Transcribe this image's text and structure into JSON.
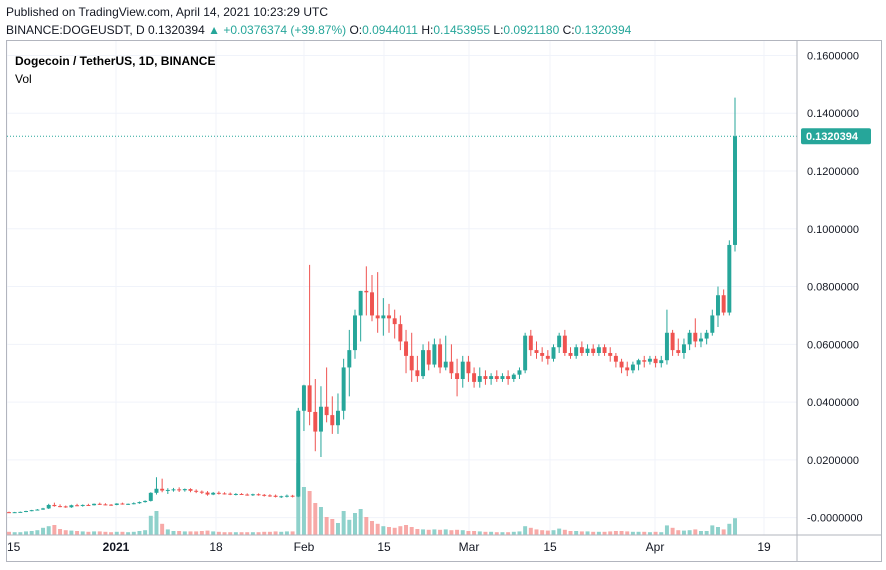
{
  "header": {
    "published": "Published on TradingView.com, April 14, 2021 10:23:29 UTC",
    "symbol": "BINANCE:DOGEUSDT, D",
    "last": "0.1320394",
    "change_arrow": "▲",
    "change": "+0.0376374 (+39.87%)",
    "o_label": "O:",
    "o_value": "0.0944011",
    "h_label": "H:",
    "h_value": "0.1453955",
    "l_label": "L:",
    "l_value": "0.0921180",
    "c_label": "C:",
    "c_value": "0.1320394"
  },
  "legend": {
    "title": "Dogecoin / TetherUS, 1D, BINANCE",
    "volume": "Vol"
  },
  "colors": {
    "up": "#26a69a",
    "down": "#ef5350",
    "up_vol": "#8ed1cb",
    "down_vol": "#f7a9a7",
    "grid": "#f0f3fa",
    "price_line": "#26a69a"
  },
  "chart_data": {
    "type": "candlestick",
    "x_ticks": [
      "15",
      "2021",
      "18",
      "Feb",
      "15",
      "Mar",
      "15",
      "Apr",
      "19"
    ],
    "y_ticks": [
      "0.1600000",
      "0.1400000",
      "0.1200000",
      "0.1000000",
      "0.0800000",
      "0.0600000",
      "0.0400000",
      "0.0200000",
      "-0.0000000"
    ],
    "ylim": [
      -0.006,
      0.165
    ],
    "last_price_label": "0.1320394",
    "last_price": 0.1320394,
    "candles": [
      {
        "o": 0.0019,
        "h": 0.0021,
        "l": 0.0017,
        "c": 0.0018,
        "v": 8
      },
      {
        "o": 0.0018,
        "h": 0.002,
        "l": 0.0017,
        "c": 0.0019,
        "v": 7
      },
      {
        "o": 0.0019,
        "h": 0.0021,
        "l": 0.0018,
        "c": 0.002,
        "v": 7
      },
      {
        "o": 0.002,
        "h": 0.0024,
        "l": 0.0019,
        "c": 0.0023,
        "v": 9
      },
      {
        "o": 0.0023,
        "h": 0.0027,
        "l": 0.0022,
        "c": 0.0026,
        "v": 10
      },
      {
        "o": 0.0026,
        "h": 0.003,
        "l": 0.0025,
        "c": 0.0028,
        "v": 12
      },
      {
        "o": 0.0028,
        "h": 0.0034,
        "l": 0.0027,
        "c": 0.0032,
        "v": 18
      },
      {
        "o": 0.0032,
        "h": 0.0048,
        "l": 0.003,
        "c": 0.0044,
        "v": 22
      },
      {
        "o": 0.0044,
        "h": 0.0052,
        "l": 0.0038,
        "c": 0.004,
        "v": 25
      },
      {
        "o": 0.004,
        "h": 0.0046,
        "l": 0.0036,
        "c": 0.0039,
        "v": 15
      },
      {
        "o": 0.0039,
        "h": 0.0042,
        "l": 0.0034,
        "c": 0.0036,
        "v": 12
      },
      {
        "o": 0.0036,
        "h": 0.0045,
        "l": 0.0034,
        "c": 0.0043,
        "v": 11
      },
      {
        "o": 0.0043,
        "h": 0.0048,
        "l": 0.004,
        "c": 0.0041,
        "v": 10
      },
      {
        "o": 0.0041,
        "h": 0.0046,
        "l": 0.0038,
        "c": 0.0044,
        "v": 9
      },
      {
        "o": 0.0044,
        "h": 0.0048,
        "l": 0.0041,
        "c": 0.0043,
        "v": 8
      },
      {
        "o": 0.0043,
        "h": 0.0049,
        "l": 0.0042,
        "c": 0.0048,
        "v": 9
      },
      {
        "o": 0.0048,
        "h": 0.0052,
        "l": 0.0044,
        "c": 0.0046,
        "v": 9
      },
      {
        "o": 0.0046,
        "h": 0.005,
        "l": 0.0043,
        "c": 0.0045,
        "v": 8
      },
      {
        "o": 0.0045,
        "h": 0.0047,
        "l": 0.0041,
        "c": 0.0044,
        "v": 7
      },
      {
        "o": 0.0044,
        "h": 0.005,
        "l": 0.0043,
        "c": 0.0049,
        "v": 8
      },
      {
        "o": 0.0049,
        "h": 0.0052,
        "l": 0.0045,
        "c": 0.0047,
        "v": 8
      },
      {
        "o": 0.0047,
        "h": 0.0049,
        "l": 0.0044,
        "c": 0.0048,
        "v": 7
      },
      {
        "o": 0.0048,
        "h": 0.0053,
        "l": 0.0046,
        "c": 0.005,
        "v": 8
      },
      {
        "o": 0.005,
        "h": 0.0056,
        "l": 0.0048,
        "c": 0.0054,
        "v": 10
      },
      {
        "o": 0.0054,
        "h": 0.006,
        "l": 0.0052,
        "c": 0.0058,
        "v": 12
      },
      {
        "o": 0.0058,
        "h": 0.0088,
        "l": 0.0056,
        "c": 0.0086,
        "v": 48
      },
      {
        "o": 0.0086,
        "h": 0.014,
        "l": 0.008,
        "c": 0.01,
        "v": 60
      },
      {
        "o": 0.01,
        "h": 0.0135,
        "l": 0.0088,
        "c": 0.0094,
        "v": 28
      },
      {
        "o": 0.0094,
        "h": 0.0102,
        "l": 0.0082,
        "c": 0.0096,
        "v": 14
      },
      {
        "o": 0.0096,
        "h": 0.0103,
        "l": 0.009,
        "c": 0.0098,
        "v": 10
      },
      {
        "o": 0.0098,
        "h": 0.0105,
        "l": 0.0089,
        "c": 0.0095,
        "v": 10
      },
      {
        "o": 0.0095,
        "h": 0.0101,
        "l": 0.009,
        "c": 0.0099,
        "v": 9
      },
      {
        "o": 0.0099,
        "h": 0.0102,
        "l": 0.0088,
        "c": 0.0093,
        "v": 9
      },
      {
        "o": 0.0093,
        "h": 0.0098,
        "l": 0.0085,
        "c": 0.009,
        "v": 9
      },
      {
        "o": 0.009,
        "h": 0.0094,
        "l": 0.0082,
        "c": 0.0087,
        "v": 10
      },
      {
        "o": 0.0087,
        "h": 0.0092,
        "l": 0.0076,
        "c": 0.008,
        "v": 11
      },
      {
        "o": 0.008,
        "h": 0.0089,
        "l": 0.0078,
        "c": 0.0086,
        "v": 9
      },
      {
        "o": 0.0086,
        "h": 0.0091,
        "l": 0.008,
        "c": 0.0084,
        "v": 8
      },
      {
        "o": 0.0084,
        "h": 0.0088,
        "l": 0.008,
        "c": 0.0083,
        "v": 7
      },
      {
        "o": 0.0083,
        "h": 0.0087,
        "l": 0.0078,
        "c": 0.0081,
        "v": 7
      },
      {
        "o": 0.0081,
        "h": 0.0085,
        "l": 0.0077,
        "c": 0.0082,
        "v": 7
      },
      {
        "o": 0.0082,
        "h": 0.0085,
        "l": 0.0079,
        "c": 0.008,
        "v": 7
      },
      {
        "o": 0.008,
        "h": 0.0084,
        "l": 0.0076,
        "c": 0.0078,
        "v": 7
      },
      {
        "o": 0.0078,
        "h": 0.0083,
        "l": 0.0075,
        "c": 0.0081,
        "v": 7
      },
      {
        "o": 0.0081,
        "h": 0.0084,
        "l": 0.0076,
        "c": 0.0079,
        "v": 7
      },
      {
        "o": 0.0079,
        "h": 0.0082,
        "l": 0.0073,
        "c": 0.0077,
        "v": 8
      },
      {
        "o": 0.0077,
        "h": 0.0081,
        "l": 0.0072,
        "c": 0.0076,
        "v": 8
      },
      {
        "o": 0.0076,
        "h": 0.008,
        "l": 0.007,
        "c": 0.0072,
        "v": 9
      },
      {
        "o": 0.0072,
        "h": 0.0076,
        "l": 0.0068,
        "c": 0.0074,
        "v": 8
      },
      {
        "o": 0.0074,
        "h": 0.008,
        "l": 0.007,
        "c": 0.0076,
        "v": 9
      },
      {
        "o": 0.0076,
        "h": 0.0079,
        "l": 0.007,
        "c": 0.0073,
        "v": 9
      },
      {
        "o": 0.0073,
        "h": 0.038,
        "l": 0.0071,
        "c": 0.037,
        "v": 180
      },
      {
        "o": 0.037,
        "h": 0.046,
        "l": 0.03,
        "c": 0.0458,
        "v": 120
      },
      {
        "o": 0.0458,
        "h": 0.0875,
        "l": 0.032,
        "c": 0.0366,
        "v": 110
      },
      {
        "o": 0.0366,
        "h": 0.048,
        "l": 0.023,
        "c": 0.0298,
        "v": 80
      },
      {
        "o": 0.0298,
        "h": 0.0455,
        "l": 0.021,
        "c": 0.0384,
        "v": 70
      },
      {
        "o": 0.0384,
        "h": 0.052,
        "l": 0.033,
        "c": 0.0355,
        "v": 45
      },
      {
        "o": 0.0355,
        "h": 0.042,
        "l": 0.029,
        "c": 0.032,
        "v": 40
      },
      {
        "o": 0.032,
        "h": 0.043,
        "l": 0.029,
        "c": 0.037,
        "v": 30
      },
      {
        "o": 0.037,
        "h": 0.055,
        "l": 0.034,
        "c": 0.052,
        "v": 60
      },
      {
        "o": 0.052,
        "h": 0.065,
        "l": 0.042,
        "c": 0.058,
        "v": 38
      },
      {
        "o": 0.058,
        "h": 0.072,
        "l": 0.055,
        "c": 0.07,
        "v": 55
      },
      {
        "o": 0.07,
        "h": 0.0785,
        "l": 0.061,
        "c": 0.0785,
        "v": 65
      },
      {
        "o": 0.0785,
        "h": 0.087,
        "l": 0.07,
        "c": 0.078,
        "v": 45
      },
      {
        "o": 0.078,
        "h": 0.084,
        "l": 0.068,
        "c": 0.07,
        "v": 35
      },
      {
        "o": 0.07,
        "h": 0.085,
        "l": 0.064,
        "c": 0.069,
        "v": 28
      },
      {
        "o": 0.069,
        "h": 0.076,
        "l": 0.063,
        "c": 0.07,
        "v": 22
      },
      {
        "o": 0.07,
        "h": 0.074,
        "l": 0.064,
        "c": 0.069,
        "v": 20
      },
      {
        "o": 0.069,
        "h": 0.072,
        "l": 0.062,
        "c": 0.067,
        "v": 18
      },
      {
        "o": 0.067,
        "h": 0.07,
        "l": 0.058,
        "c": 0.061,
        "v": 22
      },
      {
        "o": 0.061,
        "h": 0.065,
        "l": 0.05,
        "c": 0.056,
        "v": 25
      },
      {
        "o": 0.056,
        "h": 0.064,
        "l": 0.047,
        "c": 0.051,
        "v": 20
      },
      {
        "o": 0.051,
        "h": 0.056,
        "l": 0.047,
        "c": 0.049,
        "v": 15
      },
      {
        "o": 0.049,
        "h": 0.06,
        "l": 0.048,
        "c": 0.058,
        "v": 14
      },
      {
        "o": 0.058,
        "h": 0.061,
        "l": 0.051,
        "c": 0.053,
        "v": 13
      },
      {
        "o": 0.053,
        "h": 0.062,
        "l": 0.052,
        "c": 0.06,
        "v": 14
      },
      {
        "o": 0.06,
        "h": 0.062,
        "l": 0.05,
        "c": 0.052,
        "v": 13
      },
      {
        "o": 0.052,
        "h": 0.063,
        "l": 0.051,
        "c": 0.054,
        "v": 14
      },
      {
        "o": 0.054,
        "h": 0.06,
        "l": 0.048,
        "c": 0.05,
        "v": 12
      },
      {
        "o": 0.05,
        "h": 0.055,
        "l": 0.042,
        "c": 0.048,
        "v": 13
      },
      {
        "o": 0.048,
        "h": 0.056,
        "l": 0.045,
        "c": 0.054,
        "v": 12
      },
      {
        "o": 0.054,
        "h": 0.056,
        "l": 0.047,
        "c": 0.05,
        "v": 10
      },
      {
        "o": 0.05,
        "h": 0.052,
        "l": 0.045,
        "c": 0.047,
        "v": 10
      },
      {
        "o": 0.047,
        "h": 0.052,
        "l": 0.045,
        "c": 0.049,
        "v": 9
      },
      {
        "o": 0.049,
        "h": 0.051,
        "l": 0.046,
        "c": 0.048,
        "v": 8
      },
      {
        "o": 0.048,
        "h": 0.05,
        "l": 0.046,
        "c": 0.049,
        "v": 8
      },
      {
        "o": 0.049,
        "h": 0.051,
        "l": 0.047,
        "c": 0.048,
        "v": 7
      },
      {
        "o": 0.048,
        "h": 0.05,
        "l": 0.047,
        "c": 0.049,
        "v": 7
      },
      {
        "o": 0.049,
        "h": 0.051,
        "l": 0.046,
        "c": 0.048,
        "v": 7
      },
      {
        "o": 0.048,
        "h": 0.05,
        "l": 0.047,
        "c": 0.0495,
        "v": 8
      },
      {
        "o": 0.0495,
        "h": 0.052,
        "l": 0.048,
        "c": 0.051,
        "v": 9
      },
      {
        "o": 0.051,
        "h": 0.064,
        "l": 0.05,
        "c": 0.063,
        "v": 22
      },
      {
        "o": 0.063,
        "h": 0.065,
        "l": 0.056,
        "c": 0.058,
        "v": 18
      },
      {
        "o": 0.058,
        "h": 0.061,
        "l": 0.055,
        "c": 0.057,
        "v": 14
      },
      {
        "o": 0.057,
        "h": 0.059,
        "l": 0.054,
        "c": 0.056,
        "v": 12
      },
      {
        "o": 0.056,
        "h": 0.058,
        "l": 0.053,
        "c": 0.055,
        "v": 11
      },
      {
        "o": 0.055,
        "h": 0.06,
        "l": 0.054,
        "c": 0.059,
        "v": 12
      },
      {
        "o": 0.059,
        "h": 0.064,
        "l": 0.057,
        "c": 0.063,
        "v": 16
      },
      {
        "o": 0.063,
        "h": 0.065,
        "l": 0.056,
        "c": 0.057,
        "v": 13
      },
      {
        "o": 0.057,
        "h": 0.059,
        "l": 0.055,
        "c": 0.056,
        "v": 10
      },
      {
        "o": 0.056,
        "h": 0.06,
        "l": 0.055,
        "c": 0.059,
        "v": 10
      },
      {
        "o": 0.059,
        "h": 0.061,
        "l": 0.056,
        "c": 0.057,
        "v": 9
      },
      {
        "o": 0.057,
        "h": 0.06,
        "l": 0.056,
        "c": 0.0585,
        "v": 9
      },
      {
        "o": 0.0585,
        "h": 0.06,
        "l": 0.056,
        "c": 0.057,
        "v": 8
      },
      {
        "o": 0.057,
        "h": 0.06,
        "l": 0.056,
        "c": 0.059,
        "v": 8
      },
      {
        "o": 0.059,
        "h": 0.06,
        "l": 0.056,
        "c": 0.057,
        "v": 8
      },
      {
        "o": 0.057,
        "h": 0.059,
        "l": 0.054,
        "c": 0.056,
        "v": 9
      },
      {
        "o": 0.056,
        "h": 0.057,
        "l": 0.052,
        "c": 0.054,
        "v": 10
      },
      {
        "o": 0.054,
        "h": 0.055,
        "l": 0.05,
        "c": 0.052,
        "v": 10
      },
      {
        "o": 0.052,
        "h": 0.054,
        "l": 0.049,
        "c": 0.051,
        "v": 9
      },
      {
        "o": 0.051,
        "h": 0.054,
        "l": 0.05,
        "c": 0.053,
        "v": 8
      },
      {
        "o": 0.053,
        "h": 0.055,
        "l": 0.051,
        "c": 0.0545,
        "v": 8
      },
      {
        "o": 0.0545,
        "h": 0.056,
        "l": 0.052,
        "c": 0.054,
        "v": 8
      },
      {
        "o": 0.054,
        "h": 0.056,
        "l": 0.053,
        "c": 0.055,
        "v": 7
      },
      {
        "o": 0.055,
        "h": 0.056,
        "l": 0.052,
        "c": 0.0535,
        "v": 8
      },
      {
        "o": 0.0535,
        "h": 0.056,
        "l": 0.052,
        "c": 0.0545,
        "v": 7
      },
      {
        "o": 0.0545,
        "h": 0.072,
        "l": 0.053,
        "c": 0.064,
        "v": 24
      },
      {
        "o": 0.064,
        "h": 0.065,
        "l": 0.056,
        "c": 0.058,
        "v": 18
      },
      {
        "o": 0.058,
        "h": 0.062,
        "l": 0.056,
        "c": 0.057,
        "v": 12
      },
      {
        "o": 0.057,
        "h": 0.062,
        "l": 0.055,
        "c": 0.06,
        "v": 11
      },
      {
        "o": 0.06,
        "h": 0.065,
        "l": 0.058,
        "c": 0.064,
        "v": 12
      },
      {
        "o": 0.064,
        "h": 0.069,
        "l": 0.059,
        "c": 0.061,
        "v": 14
      },
      {
        "o": 0.061,
        "h": 0.064,
        "l": 0.059,
        "c": 0.062,
        "v": 10
      },
      {
        "o": 0.062,
        "h": 0.065,
        "l": 0.06,
        "c": 0.064,
        "v": 10
      },
      {
        "o": 0.064,
        "h": 0.072,
        "l": 0.063,
        "c": 0.07,
        "v": 24
      },
      {
        "o": 0.07,
        "h": 0.08,
        "l": 0.066,
        "c": 0.077,
        "v": 20
      },
      {
        "o": 0.077,
        "h": 0.079,
        "l": 0.07,
        "c": 0.071,
        "v": 14
      },
      {
        "o": 0.071,
        "h": 0.096,
        "l": 0.07,
        "c": 0.0944,
        "v": 28
      },
      {
        "o": 0.0944,
        "h": 0.1453955,
        "l": 0.092118,
        "c": 0.1320394,
        "v": 42
      }
    ]
  }
}
